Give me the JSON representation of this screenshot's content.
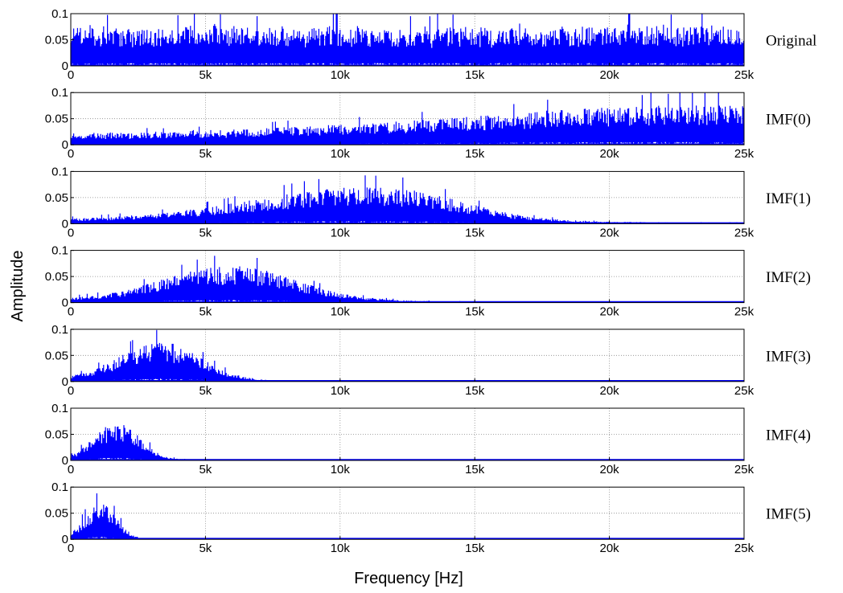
{
  "chart_data": {
    "type": "line",
    "xlabel": "Frequency [Hz]",
    "ylabel": "Amplitude",
    "xlim": [
      0,
      25000
    ],
    "ylim": [
      0,
      0.1
    ],
    "x_ticks": [
      0,
      5000,
      10000,
      15000,
      20000,
      25000
    ],
    "x_tick_labels": [
      "0",
      "5k",
      "10k",
      "15k",
      "20k",
      "25k"
    ],
    "y_ticks": [
      0,
      0.05,
      0.1
    ],
    "y_tick_labels": [
      "0",
      "0.05",
      "0.1"
    ],
    "grid": true,
    "line_color": "#0000ff",
    "x_step_hz": 250,
    "panels": [
      {
        "label": "Original",
        "x_start": 0,
        "x_end": 25000,
        "values": [
          0.063,
          0.067,
          0.062,
          0.071,
          0.065,
          0.069,
          0.06,
          0.066,
          0.068,
          0.064,
          0.07,
          0.062,
          0.066,
          0.065,
          0.061,
          0.068,
          0.064,
          0.067,
          0.07,
          0.063,
          0.065,
          0.072,
          0.066,
          0.062,
          0.068,
          0.064,
          0.069,
          0.066,
          0.061,
          0.067,
          0.065,
          0.07,
          0.064,
          0.068,
          0.062,
          0.066,
          0.069,
          0.063,
          0.067,
          0.071,
          0.065,
          0.062,
          0.068,
          0.066,
          0.064,
          0.07,
          0.063,
          0.067,
          0.065,
          0.069,
          0.064,
          0.066,
          0.071,
          0.062,
          0.068,
          0.065,
          0.067,
          0.063,
          0.069,
          0.066,
          0.064,
          0.068,
          0.062,
          0.07,
          0.065,
          0.067,
          0.072,
          0.064,
          0.066,
          0.069,
          0.063,
          0.068,
          0.065,
          0.071,
          0.064,
          0.067,
          0.069,
          0.066,
          0.063,
          0.07,
          0.068,
          0.065,
          0.073,
          0.066,
          0.064,
          0.069,
          0.067,
          0.071,
          0.065,
          0.068,
          0.064,
          0.07,
          0.066,
          0.069,
          0.072,
          0.065,
          0.067,
          0.064,
          0.07,
          0.066
        ]
      },
      {
        "label": "IMF(0)",
        "x_start": 0,
        "x_end": 25000,
        "values": [
          0.019,
          0.02,
          0.018,
          0.021,
          0.02,
          0.019,
          0.022,
          0.02,
          0.021,
          0.019,
          0.022,
          0.021,
          0.023,
          0.022,
          0.021,
          0.024,
          0.022,
          0.023,
          0.025,
          0.023,
          0.024,
          0.026,
          0.025,
          0.024,
          0.027,
          0.026,
          0.028,
          0.027,
          0.029,
          0.028,
          0.03,
          0.029,
          0.031,
          0.03,
          0.032,
          0.031,
          0.033,
          0.032,
          0.034,
          0.033,
          0.035,
          0.034,
          0.036,
          0.035,
          0.037,
          0.036,
          0.038,
          0.039,
          0.04,
          0.039,
          0.042,
          0.041,
          0.043,
          0.042,
          0.045,
          0.044,
          0.046,
          0.045,
          0.048,
          0.047,
          0.05,
          0.049,
          0.051,
          0.05,
          0.053,
          0.052,
          0.055,
          0.054,
          0.056,
          0.055,
          0.058,
          0.057,
          0.059,
          0.058,
          0.061,
          0.06,
          0.062,
          0.061,
          0.063,
          0.062,
          0.064,
          0.063,
          0.066,
          0.065,
          0.064,
          0.067,
          0.066,
          0.068,
          0.065,
          0.067,
          0.069,
          0.066,
          0.068,
          0.067,
          0.065,
          0.069,
          0.066,
          0.068,
          0.065,
          0.067
        ]
      },
      {
        "label": "IMF(1)",
        "x_start": 0,
        "x_end": 25000,
        "values": [
          0.009,
          0.01,
          0.01,
          0.011,
          0.011,
          0.012,
          0.012,
          0.013,
          0.014,
          0.014,
          0.015,
          0.016,
          0.017,
          0.018,
          0.019,
          0.02,
          0.022,
          0.023,
          0.025,
          0.026,
          0.028,
          0.03,
          0.031,
          0.033,
          0.035,
          0.037,
          0.039,
          0.041,
          0.043,
          0.045,
          0.047,
          0.049,
          0.051,
          0.052,
          0.054,
          0.055,
          0.057,
          0.058,
          0.059,
          0.06,
          0.061,
          0.061,
          0.062,
          0.062,
          0.062,
          0.062,
          0.061,
          0.061,
          0.06,
          0.059,
          0.057,
          0.055,
          0.053,
          0.051,
          0.048,
          0.045,
          0.042,
          0.039,
          0.036,
          0.033,
          0.03,
          0.027,
          0.024,
          0.022,
          0.019,
          0.017,
          0.015,
          0.013,
          0.011,
          0.01,
          0.009,
          0.008,
          0.007,
          0.006,
          0.006,
          0.005,
          0.005,
          0.004,
          0.004,
          0.004,
          0.003,
          0.003,
          0.003,
          0.003,
          0.003,
          0.002,
          0.002,
          0.002,
          0.002,
          0.002,
          0.002,
          0.002,
          0.002,
          0.002,
          0.002,
          0.002,
          0.002,
          0.002,
          0.002,
          0.002
        ]
      },
      {
        "label": "IMF(2)",
        "x_start": 0,
        "x_end": 15000,
        "values": [
          0.009,
          0.01,
          0.011,
          0.012,
          0.013,
          0.015,
          0.017,
          0.019,
          0.022,
          0.025,
          0.028,
          0.031,
          0.035,
          0.038,
          0.042,
          0.045,
          0.048,
          0.051,
          0.054,
          0.056,
          0.058,
          0.06,
          0.061,
          0.062,
          0.062,
          0.061,
          0.06,
          0.058,
          0.056,
          0.053,
          0.05,
          0.046,
          0.042,
          0.038,
          0.034,
          0.03,
          0.026,
          0.023,
          0.02,
          0.017,
          0.015,
          0.013,
          0.011,
          0.009,
          0.008,
          0.007,
          0.006,
          0.005,
          0.004,
          0.004,
          0.003,
          0.003,
          0.003,
          0.002,
          0.002,
          0.002,
          0.002,
          0.002,
          0.002,
          0.002
        ]
      },
      {
        "label": "IMF(3)",
        "x_start": 0,
        "x_end": 8000,
        "values": [
          0.01,
          0.012,
          0.015,
          0.019,
          0.024,
          0.03,
          0.036,
          0.042,
          0.048,
          0.054,
          0.059,
          0.063,
          0.066,
          0.067,
          0.066,
          0.063,
          0.058,
          0.052,
          0.045,
          0.038,
          0.031,
          0.025,
          0.019,
          0.015,
          0.011,
          0.008,
          0.006,
          0.004,
          0.003,
          0.002,
          0.002,
          0.002
        ]
      },
      {
        "label": "IMF(4)",
        "x_start": 0,
        "x_end": 5000,
        "values": [
          0.008,
          0.015,
          0.025,
          0.038,
          0.05,
          0.06,
          0.065,
          0.064,
          0.058,
          0.048,
          0.036,
          0.025,
          0.015,
          0.009,
          0.005,
          0.003,
          0.002,
          0.002,
          0.002,
          0.002
        ]
      },
      {
        "label": "IMF(5)",
        "x_start": 0,
        "x_end": 2500,
        "values": [
          0.01,
          0.022,
          0.04,
          0.056,
          0.062,
          0.055,
          0.04,
          0.022,
          0.01,
          0.004
        ]
      }
    ]
  }
}
